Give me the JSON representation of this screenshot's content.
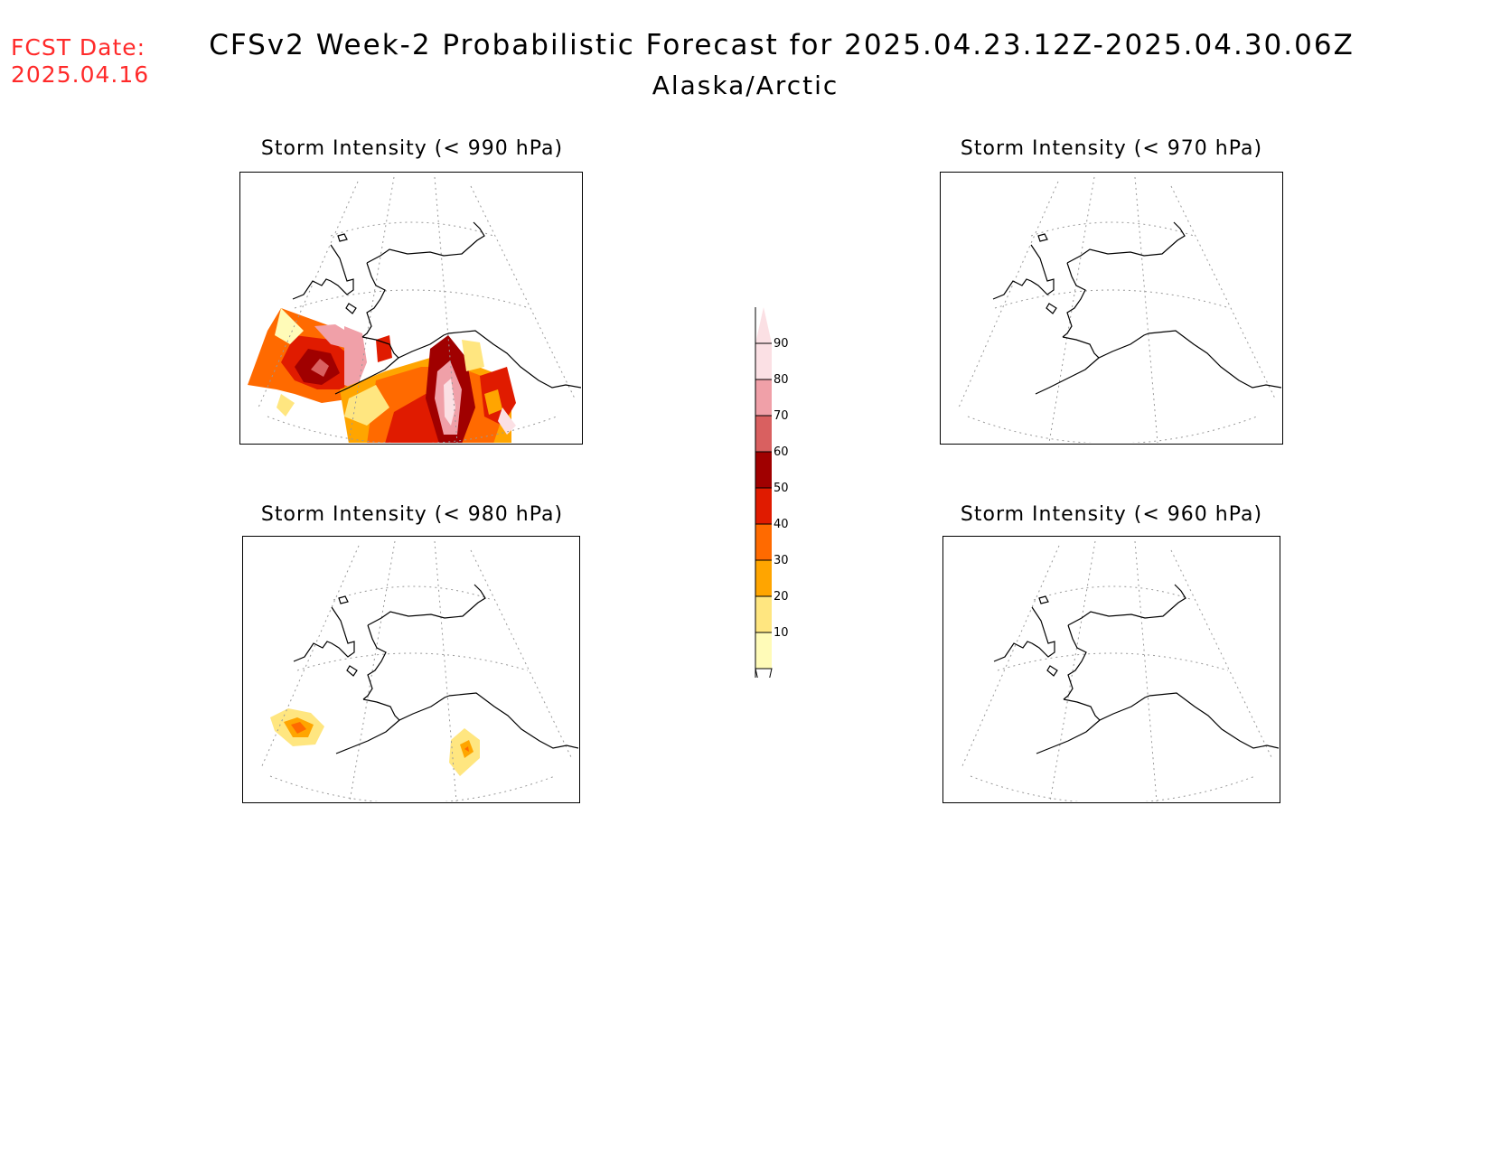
{
  "header": {
    "fcst_label": "FCST Date:",
    "fcst_date": "2025.04.16",
    "title": "CFSv2 Week-2 Probabilistic Forecast for 2025.04.23.12Z-2025.04.30.06Z",
    "region": "Alaska/Arctic"
  },
  "panels": [
    {
      "id": "p990",
      "title": "Storm Intensity (< 990 hPa)"
    },
    {
      "id": "p970",
      "title": "Storm Intensity (< 970 hPa)"
    },
    {
      "id": "p980",
      "title": "Storm Intensity (< 980 hPa)"
    },
    {
      "id": "p960",
      "title": "Storm Intensity (< 960 hPa)"
    }
  ],
  "colorbar": {
    "labels": [
      "10",
      "20",
      "30",
      "40",
      "50",
      "60",
      "70",
      "80",
      "90"
    ],
    "colors": [
      "#fffbb8",
      "#ffe680",
      "#ffa500",
      "#ff6a00",
      "#e01b00",
      "#a00000",
      "#d96060",
      "#f0a0a8",
      "#fbe0e4"
    ]
  }
}
